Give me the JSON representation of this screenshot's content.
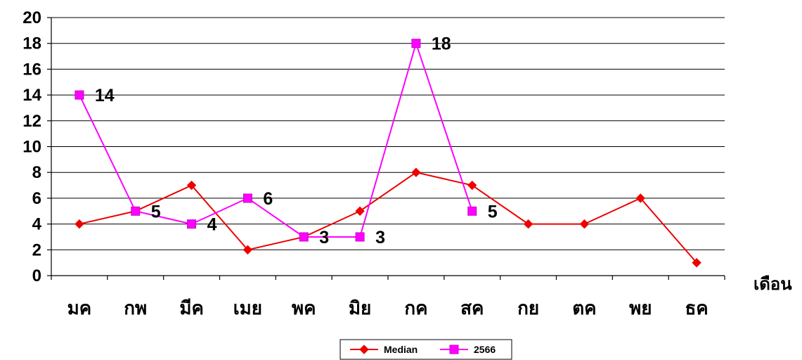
{
  "chart_data": {
    "type": "line",
    "categories": [
      "มค",
      "กพ",
      "มีค",
      "เมย",
      "พค",
      "มิย",
      "กค",
      "สค",
      "กย",
      "ตค",
      "พย",
      "ธค"
    ],
    "series": [
      {
        "name": "Median",
        "values": [
          4,
          5,
          7,
          2,
          3,
          5,
          8,
          7,
          4,
          4,
          6,
          1
        ],
        "color": "#ee0000",
        "marker": "diamond",
        "show_labels": false
      },
      {
        "name": "2566",
        "values": [
          14,
          5,
          4,
          6,
          3,
          3,
          18,
          5,
          null,
          null,
          null,
          null
        ],
        "color": "#ff00ff",
        "marker": "square",
        "show_labels": true
      }
    ],
    "yticks": [
      "0",
      "2",
      "4",
      "6",
      "8",
      "10",
      "12",
      "14",
      "16",
      "18",
      "20"
    ],
    "ylim": [
      0,
      20
    ],
    "xlabel": "เดือน",
    "ylabel": "",
    "title": "",
    "grid": true,
    "legend": "bottom-center"
  }
}
